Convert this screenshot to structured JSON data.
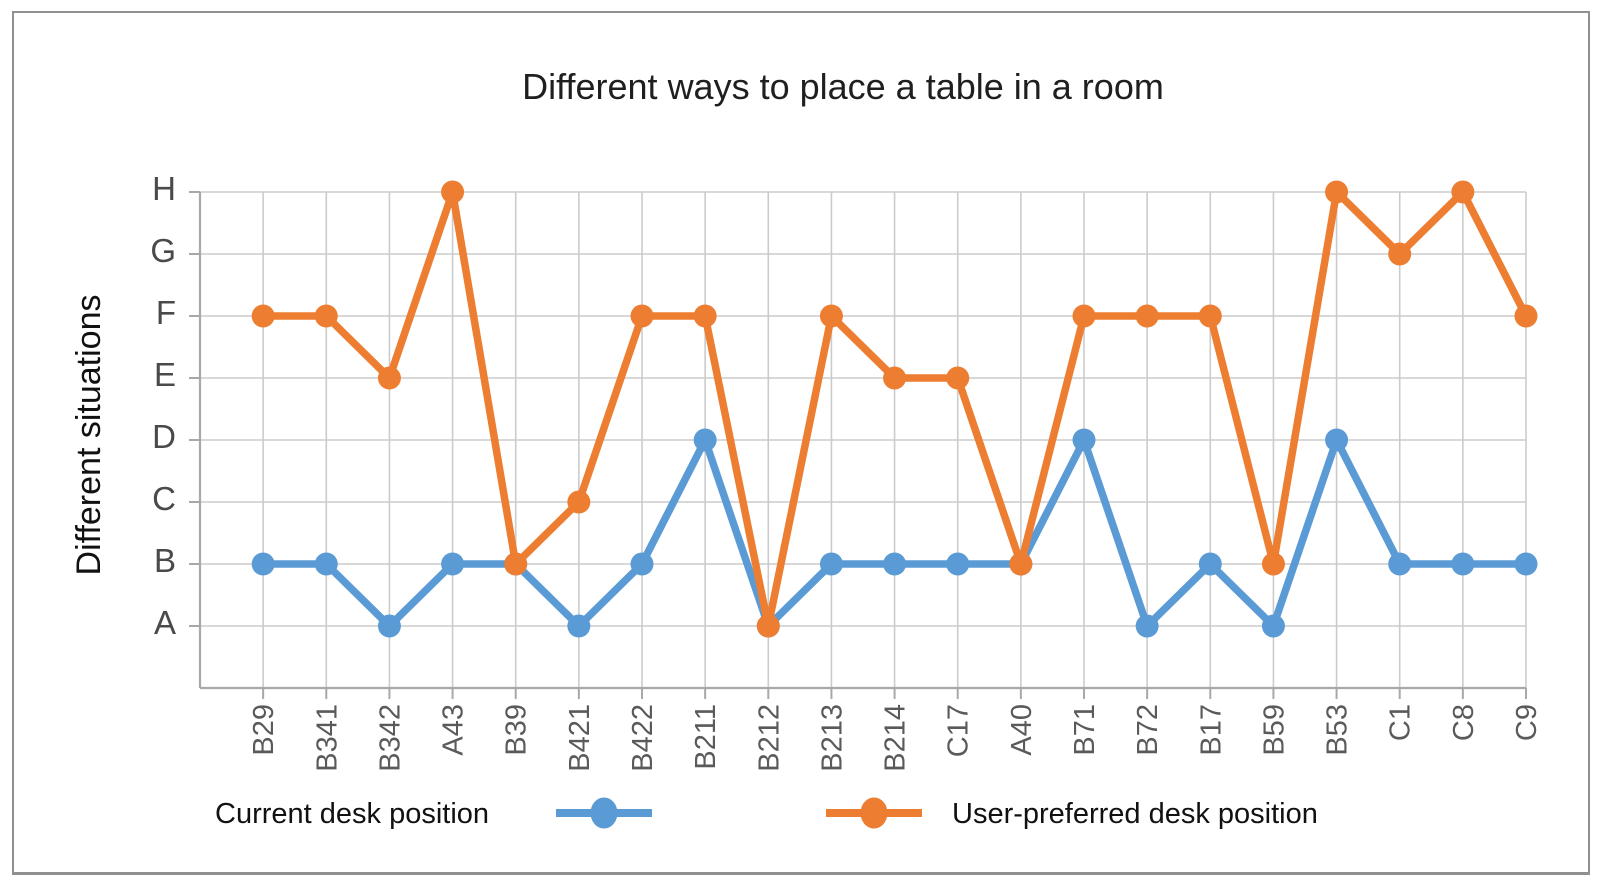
{
  "page": {
    "background": "#ffffff",
    "frame_border_color": "#909090"
  },
  "chart_data": {
    "type": "line",
    "title": "Different ways to place a table in a room",
    "xlabel": "",
    "ylabel": "Different situations",
    "categories": [
      "B29",
      "B341",
      "B342",
      "A43",
      "B39",
      "B421",
      "B422",
      "B211",
      "B212",
      "B213",
      "B214",
      "C17",
      "A40",
      "B71",
      "B72",
      "B17",
      "B59",
      "B53",
      "C1",
      "C8",
      "C9"
    ],
    "y_tick_labels": [
      "A",
      "B",
      "C",
      "D",
      "E",
      "F",
      "G",
      "H"
    ],
    "ylim": [
      0,
      8
    ],
    "grid": true,
    "marker": "circle",
    "x_tick_rotation": -90,
    "legend_position": "bottom",
    "series": [
      {
        "name": "Current desk position",
        "color": "#5b9bd5",
        "values": [
          "B",
          "B",
          "A",
          "B",
          "B",
          "A",
          "B",
          "D",
          "A",
          "B",
          "B",
          "B",
          "B",
          "D",
          "A",
          "B",
          "A",
          "D",
          "B",
          "B",
          "B"
        ]
      },
      {
        "name": "User-preferred desk position",
        "color": "#ed7d31",
        "values": [
          "F",
          "F",
          "E",
          "H",
          "B",
          "C",
          "F",
          "F",
          "A",
          "F",
          "E",
          "E",
          "B",
          "F",
          "F",
          "F",
          "B",
          "H",
          "G",
          "H",
          "F"
        ]
      }
    ],
    "colors": {
      "gridline": "#cbcbcb",
      "axis": "#a8a8a8",
      "y_tick_label": "#4a4a4a",
      "x_tick_label": "#5a5a5a",
      "title": "#1f1f1f"
    }
  }
}
